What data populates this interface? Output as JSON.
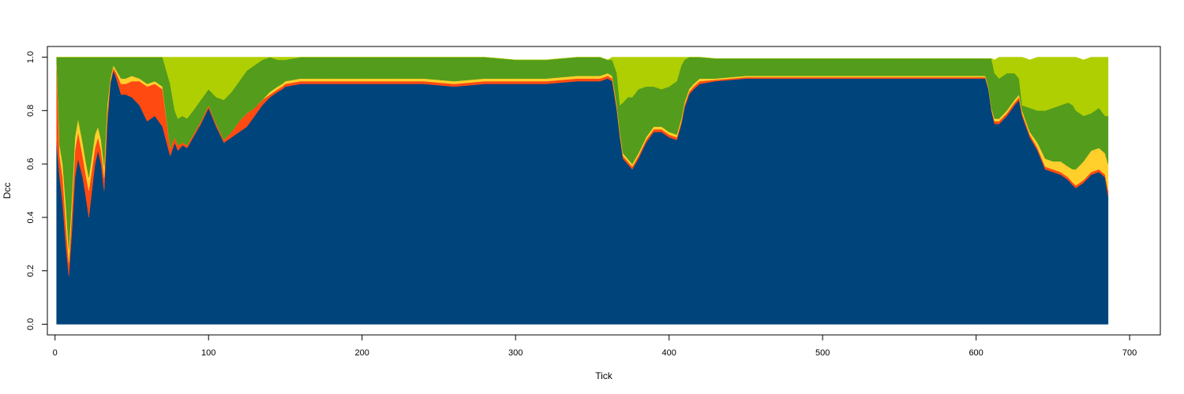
{
  "chart_data": {
    "type": "area",
    "stacked": true,
    "title": "",
    "xlabel": "Tick",
    "ylabel": "Dcc",
    "xlim": [
      -5,
      720
    ],
    "ylim": [
      -0.04,
      1.04
    ],
    "x_ticks": [
      0,
      100,
      200,
      300,
      400,
      500,
      600,
      700
    ],
    "y_ticks": [
      0.0,
      0.2,
      0.4,
      0.6,
      0.8,
      1.0
    ],
    "y_tick_labels": [
      "0.0",
      "0.2",
      "0.4",
      "0.6",
      "0.8",
      "1.0"
    ],
    "grid": false,
    "legend": "none",
    "x": [
      1,
      3,
      5,
      7,
      9,
      11,
      13,
      15,
      18,
      20,
      22,
      24,
      26,
      28,
      30,
      32,
      34,
      36,
      38,
      40,
      43,
      46,
      50,
      55,
      60,
      65,
      70,
      75,
      78,
      80,
      83,
      86,
      90,
      95,
      100,
      105,
      110,
      115,
      120,
      125,
      130,
      135,
      140,
      145,
      148,
      150,
      160,
      170,
      180,
      200,
      220,
      240,
      260,
      280,
      300,
      320,
      340,
      355,
      360,
      363,
      366,
      368,
      370,
      373,
      376,
      380,
      385,
      390,
      395,
      400,
      405,
      408,
      410,
      413,
      416,
      420,
      430,
      450,
      500,
      550,
      600,
      606,
      608,
      610,
      612,
      615,
      620,
      625,
      628,
      630,
      635,
      640,
      645,
      650,
      655,
      660,
      663,
      665,
      670,
      675,
      680,
      684,
      686
    ],
    "series": [
      {
        "color": "#00447c",
        "values": [
          0.68,
          0.55,
          0.45,
          0.3,
          0.18,
          0.35,
          0.55,
          0.62,
          0.55,
          0.48,
          0.4,
          0.5,
          0.6,
          0.65,
          0.6,
          0.5,
          0.75,
          0.9,
          0.95,
          0.92,
          0.86,
          0.86,
          0.85,
          0.82,
          0.76,
          0.78,
          0.74,
          0.63,
          0.68,
          0.65,
          0.67,
          0.66,
          0.7,
          0.75,
          0.81,
          0.74,
          0.68,
          0.7,
          0.72,
          0.74,
          0.78,
          0.82,
          0.85,
          0.87,
          0.88,
          0.89,
          0.9,
          0.9,
          0.9,
          0.9,
          0.9,
          0.9,
          0.89,
          0.9,
          0.9,
          0.9,
          0.91,
          0.91,
          0.92,
          0.91,
          0.8,
          0.7,
          0.62,
          0.6,
          0.58,
          0.62,
          0.68,
          0.72,
          0.72,
          0.7,
          0.69,
          0.75,
          0.81,
          0.86,
          0.88,
          0.9,
          0.91,
          0.92,
          0.92,
          0.92,
          0.92,
          0.92,
          0.88,
          0.8,
          0.75,
          0.75,
          0.78,
          0.82,
          0.84,
          0.78,
          0.7,
          0.65,
          0.58,
          0.57,
          0.56,
          0.54,
          0.52,
          0.51,
          0.53,
          0.56,
          0.57,
          0.55,
          0.48
        ]
      },
      {
        "color": "#ff4a12",
        "values": [
          0.3,
          0.08,
          0.1,
          0.08,
          0.05,
          0.08,
          0.1,
          0.1,
          0.08,
          0.08,
          0.1,
          0.08,
          0.06,
          0.05,
          0.05,
          0.05,
          0.04,
          0.01,
          0.01,
          0.02,
          0.04,
          0.04,
          0.06,
          0.09,
          0.13,
          0.12,
          0.14,
          0.03,
          0.02,
          0.02,
          0.01,
          0.01,
          0.01,
          0.01,
          0.01,
          0.01,
          0.01,
          0.02,
          0.04,
          0.05,
          0.03,
          0.02,
          0.01,
          0.01,
          0.01,
          0.01,
          0.01,
          0.01,
          0.01,
          0.01,
          0.01,
          0.01,
          0.01,
          0.01,
          0.01,
          0.01,
          0.01,
          0.01,
          0.01,
          0.01,
          0.01,
          0.01,
          0.01,
          0.01,
          0.01,
          0.01,
          0.01,
          0.01,
          0.01,
          0.01,
          0.01,
          0.01,
          0.01,
          0.01,
          0.01,
          0.01,
          0.005,
          0.005,
          0.005,
          0.005,
          0.005,
          0.005,
          0.005,
          0.005,
          0.01,
          0.01,
          0.01,
          0.01,
          0.01,
          0.01,
          0.01,
          0.01,
          0.01,
          0.01,
          0.01,
          0.01,
          0.01,
          0.01,
          0.01,
          0.01,
          0.01,
          0.01,
          0.02
        ]
      },
      {
        "color": "#ffcf2c",
        "values": [
          0.02,
          0.04,
          0.05,
          0.07,
          0.05,
          0.05,
          0.05,
          0.05,
          0.05,
          0.05,
          0.05,
          0.05,
          0.05,
          0.04,
          0.04,
          0.04,
          0.03,
          0.01,
          0.01,
          0.01,
          0.02,
          0.02,
          0.02,
          0.01,
          0.01,
          0.01,
          0.01,
          0.0,
          0.0,
          0.0,
          0.0,
          0.0,
          0.0,
          0.0,
          0.0,
          0.0,
          0.0,
          0.0,
          0.0,
          0.0,
          0.0,
          0.0,
          0.01,
          0.01,
          0.01,
          0.01,
          0.01,
          0.01,
          0.01,
          0.01,
          0.01,
          0.01,
          0.01,
          0.01,
          0.01,
          0.01,
          0.01,
          0.01,
          0.01,
          0.01,
          0.01,
          0.01,
          0.01,
          0.01,
          0.01,
          0.01,
          0.01,
          0.01,
          0.01,
          0.01,
          0.01,
          0.01,
          0.01,
          0.01,
          0.01,
          0.01,
          0.005,
          0.005,
          0.005,
          0.005,
          0.005,
          0.005,
          0.005,
          0.005,
          0.01,
          0.01,
          0.01,
          0.01,
          0.01,
          0.01,
          0.01,
          0.02,
          0.03,
          0.03,
          0.04,
          0.04,
          0.05,
          0.06,
          0.07,
          0.08,
          0.08,
          0.08,
          0.1
        ]
      },
      {
        "color": "#539c1c",
        "values": [
          0.0,
          0.33,
          0.4,
          0.55,
          0.72,
          0.52,
          0.3,
          0.23,
          0.32,
          0.39,
          0.45,
          0.37,
          0.29,
          0.26,
          0.31,
          0.41,
          0.18,
          0.08,
          0.03,
          0.05,
          0.08,
          0.08,
          0.07,
          0.08,
          0.1,
          0.09,
          0.11,
          0.24,
          0.1,
          0.1,
          0.1,
          0.1,
          0.09,
          0.08,
          0.06,
          0.1,
          0.15,
          0.15,
          0.15,
          0.16,
          0.16,
          0.15,
          0.13,
          0.1,
          0.09,
          0.08,
          0.08,
          0.08,
          0.08,
          0.08,
          0.08,
          0.08,
          0.09,
          0.08,
          0.07,
          0.07,
          0.07,
          0.07,
          0.05,
          0.06,
          0.12,
          0.1,
          0.19,
          0.23,
          0.25,
          0.24,
          0.19,
          0.15,
          0.14,
          0.17,
          0.2,
          0.2,
          0.16,
          0.12,
          0.1,
          0.08,
          0.075,
          0.065,
          0.065,
          0.065,
          0.065,
          0.065,
          0.105,
          0.185,
          0.17,
          0.15,
          0.14,
          0.1,
          0.06,
          0.02,
          0.09,
          0.12,
          0.18,
          0.2,
          0.21,
          0.24,
          0.24,
          0.22,
          0.17,
          0.14,
          0.15,
          0.14,
          0.18
        ]
      },
      {
        "color": "#afcf02",
        "values": [
          0.0,
          0.0,
          0.0,
          0.0,
          0.0,
          0.0,
          0.0,
          0.0,
          0.0,
          0.0,
          0.0,
          0.0,
          0.0,
          0.0,
          0.0,
          0.0,
          0.0,
          0.0,
          0.0,
          0.0,
          0.0,
          0.0,
          0.0,
          0.0,
          0.0,
          0.0,
          0.0,
          0.1,
          0.2,
          0.23,
          0.22,
          0.23,
          0.2,
          0.16,
          0.12,
          0.15,
          0.16,
          0.13,
          0.09,
          0.05,
          0.03,
          0.01,
          0.0,
          0.01,
          0.01,
          0.01,
          0.0,
          0.0,
          0.0,
          0.0,
          0.0,
          0.0,
          0.0,
          0.0,
          0.0,
          0.0,
          0.0,
          0.0,
          0.0,
          0.01,
          0.06,
          0.18,
          0.17,
          0.15,
          0.15,
          0.12,
          0.11,
          0.11,
          0.12,
          0.11,
          0.09,
          0.03,
          0.01,
          0.0,
          0.0,
          0.0,
          0.0,
          0.0,
          0.0,
          0.0,
          0.0,
          0.0,
          0.0,
          0.0,
          0.05,
          0.08,
          0.06,
          0.06,
          0.08,
          0.18,
          0.18,
          0.2,
          0.2,
          0.19,
          0.18,
          0.17,
          0.18,
          0.2,
          0.21,
          0.21,
          0.19,
          0.22,
          0.22
        ]
      }
    ]
  }
}
